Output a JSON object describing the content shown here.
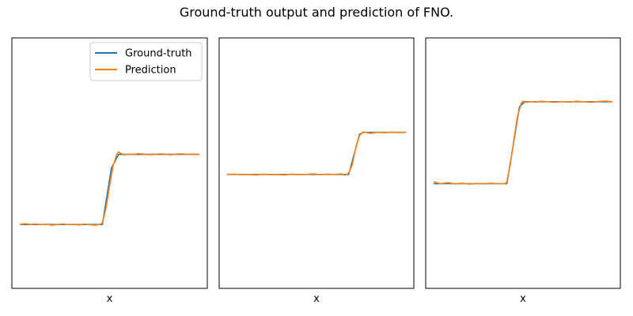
{
  "chart_data": {
    "title": "Ground-truth output and prediction of FNO.",
    "type": "line",
    "legend": {
      "placement": "top-right",
      "panel": 0,
      "entries": [
        "Ground-truth",
        "Prediction"
      ]
    },
    "colors": {
      "ground_truth": "#1f77b4",
      "prediction": "#ff7f0e"
    },
    "axes": [
      {
        "xlabel": "x",
        "xlim": [
          0,
          1
        ],
        "ylim": [
          0,
          1
        ],
        "ground_truth": {
          "x": [
            0,
            0.46,
            0.51,
            0.55,
            1
          ],
          "y": [
            0.255,
            0.255,
            0.48,
            0.535,
            0.535
          ]
        },
        "prediction": {
          "x": [
            0,
            0.03,
            0.06,
            0.09,
            0.12,
            0.15,
            0.18,
            0.21,
            0.24,
            0.27,
            0.3,
            0.33,
            0.36,
            0.39,
            0.42,
            0.45,
            0.46,
            0.48,
            0.5,
            0.52,
            0.54,
            0.55,
            0.56,
            0.58,
            0.6,
            0.63,
            0.66,
            0.69,
            0.72,
            0.75,
            0.78,
            0.81,
            0.84,
            0.87,
            0.9,
            0.93,
            0.96,
            1.0
          ],
          "y": [
            0.255,
            0.258,
            0.255,
            0.257,
            0.254,
            0.256,
            0.252,
            0.255,
            0.257,
            0.254,
            0.256,
            0.253,
            0.257,
            0.254,
            0.252,
            0.256,
            0.262,
            0.32,
            0.41,
            0.49,
            0.535,
            0.545,
            0.54,
            0.533,
            0.536,
            0.535,
            0.538,
            0.536,
            0.533,
            0.535,
            0.537,
            0.535,
            0.533,
            0.536,
            0.537,
            0.535,
            0.536,
            0.535
          ]
        }
      },
      {
        "xlabel": "x",
        "xlim": [
          0,
          1
        ],
        "ylim": [
          0,
          1
        ],
        "ground_truth": {
          "x": [
            0,
            0.68,
            0.74,
            0.76,
            1
          ],
          "y": [
            0.455,
            0.455,
            0.615,
            0.623,
            0.623
          ]
        },
        "prediction": {
          "x": [
            0,
            0.04,
            0.08,
            0.12,
            0.16,
            0.2,
            0.24,
            0.28,
            0.32,
            0.36,
            0.4,
            0.44,
            0.48,
            0.52,
            0.56,
            0.6,
            0.64,
            0.66,
            0.68,
            0.7,
            0.72,
            0.74,
            0.76,
            0.78,
            0.8,
            0.84,
            0.88,
            0.92,
            0.96,
            1.0
          ],
          "y": [
            0.455,
            0.456,
            0.454,
            0.455,
            0.453,
            0.456,
            0.454,
            0.455,
            0.453,
            0.456,
            0.454,
            0.455,
            0.457,
            0.454,
            0.456,
            0.455,
            0.457,
            0.452,
            0.46,
            0.495,
            0.565,
            0.61,
            0.625,
            0.622,
            0.619,
            0.623,
            0.621,
            0.624,
            0.622,
            0.623
          ]
        }
      },
      {
        "xlabel": "x",
        "xlim": [
          0,
          1
        ],
        "ylim": [
          0,
          1
        ],
        "ground_truth": {
          "x": [
            0,
            0.41,
            0.48,
            0.51,
            1
          ],
          "y": [
            0.418,
            0.418,
            0.725,
            0.745,
            0.745
          ]
        },
        "prediction": {
          "x": [
            0,
            0.04,
            0.08,
            0.12,
            0.16,
            0.2,
            0.24,
            0.28,
            0.32,
            0.36,
            0.4,
            0.41,
            0.43,
            0.45,
            0.47,
            0.49,
            0.5,
            0.52,
            0.54,
            0.57,
            0.6,
            0.64,
            0.68,
            0.72,
            0.76,
            0.8,
            0.84,
            0.88,
            0.92,
            0.96,
            1.0
          ],
          "y": [
            0.426,
            0.418,
            0.422,
            0.417,
            0.42,
            0.416,
            0.419,
            0.417,
            0.42,
            0.418,
            0.418,
            0.426,
            0.5,
            0.6,
            0.69,
            0.738,
            0.748,
            0.743,
            0.746,
            0.744,
            0.747,
            0.745,
            0.743,
            0.746,
            0.744,
            0.747,
            0.745,
            0.743,
            0.746,
            0.748,
            0.745
          ]
        }
      }
    ]
  }
}
